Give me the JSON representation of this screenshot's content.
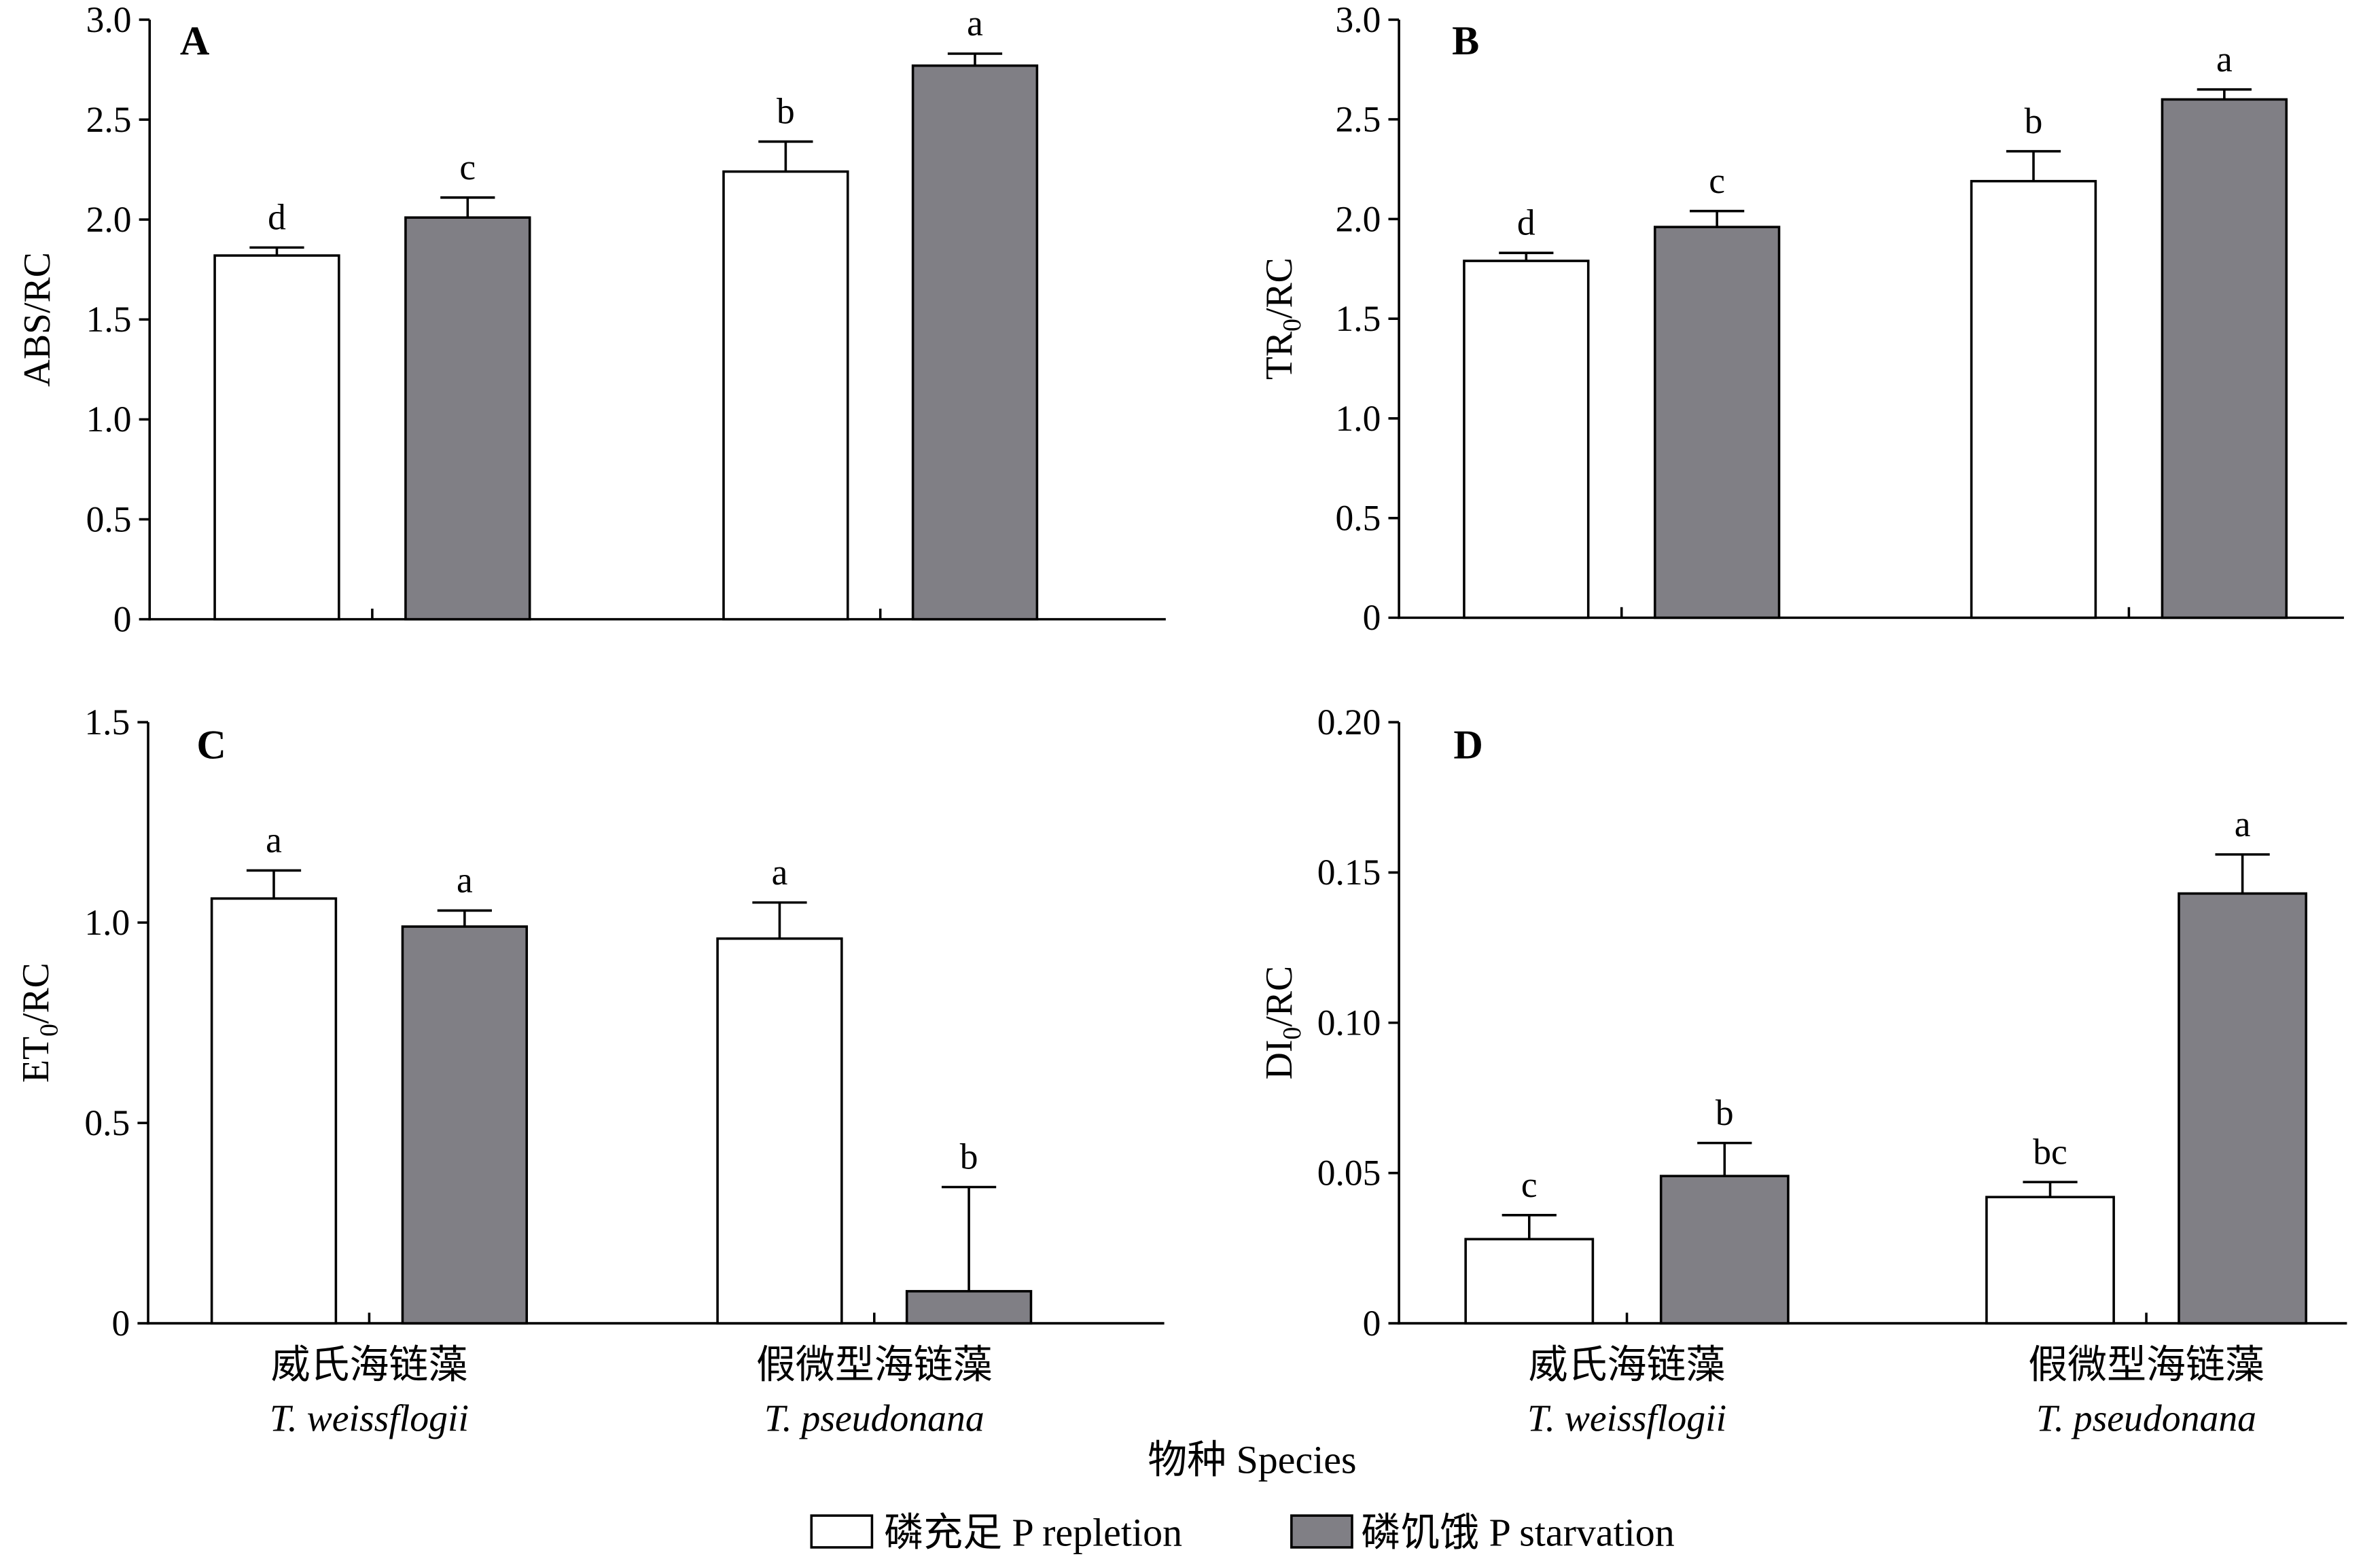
{
  "chart_data": {
    "type": "bar",
    "grid": false,
    "xlabel": "物种 Species",
    "categories": [
      {
        "zh": "威氏海链藻",
        "latin": "T. weissflogii"
      },
      {
        "zh": "假微型海链藻",
        "latin": "T. pseudonana"
      }
    ],
    "series": [
      {
        "name": "磷充足 P repletion",
        "color": "#ffffff"
      },
      {
        "name": "磷饥饿 P starvation",
        "color": "#807f85"
      }
    ],
    "legend": {
      "position": "bottom-center"
    },
    "panels": [
      {
        "label": "A",
        "ylabel": {
          "text": "ABS/RC"
        },
        "ylim": [
          0,
          3.0
        ],
        "yticks": [
          "0",
          "0.5",
          "1.0",
          "1.5",
          "2.0",
          "2.5",
          "3.0"
        ],
        "bars": [
          {
            "values": [
              1.82,
              2.24
            ],
            "errors": [
              0.04,
              0.15
            ],
            "letters": [
              "d",
              "b"
            ]
          },
          {
            "values": [
              2.01,
              2.77
            ],
            "errors": [
              0.1,
              0.06
            ],
            "letters": [
              "c",
              "a"
            ]
          }
        ]
      },
      {
        "label": "B",
        "ylabel": {
          "text": "TR",
          "sub": "0",
          "tail": "/RC"
        },
        "ylim": [
          0,
          3.0
        ],
        "yticks": [
          "0",
          "0.5",
          "1.0",
          "1.5",
          "2.0",
          "2.5",
          "3.0"
        ],
        "bars": [
          {
            "values": [
              1.79,
              2.19
            ],
            "errors": [
              0.04,
              0.15
            ],
            "letters": [
              "d",
              "b"
            ]
          },
          {
            "values": [
              1.96,
              2.6
            ],
            "errors": [
              0.08,
              0.05
            ],
            "letters": [
              "c",
              "a"
            ]
          }
        ]
      },
      {
        "label": "C",
        "ylabel": {
          "text": "ET",
          "sub": "0",
          "tail": "/RC"
        },
        "ylim": [
          0,
          1.5
        ],
        "yticks": [
          "0",
          "0.5",
          "1.0",
          "1.5"
        ],
        "bars": [
          {
            "values": [
              1.06,
              0.96
            ],
            "errors": [
              0.07,
              0.09
            ],
            "letters": [
              "a",
              "a"
            ]
          },
          {
            "values": [
              0.99,
              0.08
            ],
            "errors": [
              0.04,
              0.26
            ],
            "letters": [
              "a",
              "b"
            ]
          }
        ]
      },
      {
        "label": "D",
        "ylabel": {
          "text": "DI",
          "sub": "0",
          "tail": "/RC"
        },
        "ylim": [
          0,
          0.2
        ],
        "yticks": [
          "0",
          "0.05",
          "0.10",
          "0.15",
          "0.20"
        ],
        "bars": [
          {
            "values": [
              0.028,
              0.042
            ],
            "errors": [
              0.008,
              0.005
            ],
            "letters": [
              "c",
              "bc"
            ]
          },
          {
            "values": [
              0.049,
              0.143
            ],
            "errors": [
              0.011,
              0.013
            ],
            "letters": [
              "b",
              "a"
            ]
          }
        ]
      }
    ]
  }
}
